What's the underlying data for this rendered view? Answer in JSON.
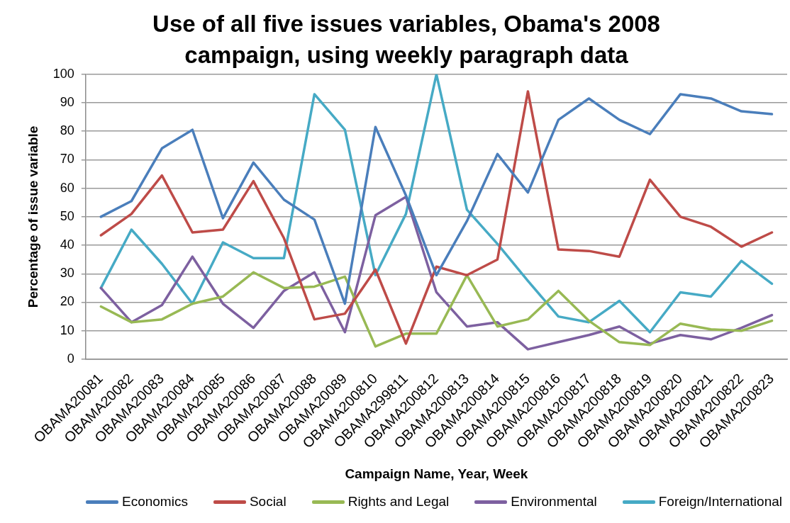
{
  "chart_data": {
    "type": "line",
    "title": "Use of all five issues variables, Obama's 2008 campaign, using weekly paragraph data",
    "xlabel": "Campaign Name, Year, Week",
    "ylabel": "Percentage of issue variable",
    "categories": [
      "OBAMA20081",
      "OBAMA20082",
      "OBAMA20083",
      "OBAMA20084",
      "OBAMA20085",
      "OBAMA20086",
      "OBAMA20087",
      "OBAMA20088",
      "OBAMA20089",
      "OBAMA200810",
      "OBAMA299811",
      "OBAMA200812",
      "OBAMA200813",
      "OBAMA200814",
      "OBAMA200815",
      "OBAMA200816",
      "OBAMA200817",
      "OBAMA200818",
      "OBAMA200819",
      "OBAMA200820",
      "OBAMA200821",
      "OBAMA200822",
      "OBAMA200823"
    ],
    "series": [
      {
        "name": "Economics",
        "color": "#4a7ebb",
        "values": [
          50,
          55.5,
          74,
          80.5,
          49.5,
          69,
          56,
          49,
          19.5,
          81.5,
          57.5,
          29.5,
          48.5,
          72,
          58.5,
          84,
          91.5,
          84,
          79,
          93,
          91.5,
          87,
          86
        ]
      },
      {
        "name": "Social",
        "color": "#be4b48",
        "values": [
          43.5,
          51,
          64.5,
          44.5,
          45.5,
          62.5,
          42.5,
          14,
          16,
          31.5,
          5.5,
          32.5,
          29.5,
          35,
          94,
          38.5,
          38,
          36,
          63,
          50,
          46.5,
          39.5,
          44.5
        ]
      },
      {
        "name": "Rights and Legal",
        "color": "#98b954",
        "values": [
          18.5,
          13,
          14,
          19.5,
          22,
          30.5,
          25,
          25.5,
          29,
          4.5,
          9,
          9,
          29.5,
          11.5,
          14,
          24,
          13.5,
          6,
          5,
          12.5,
          10.5,
          10,
          13.5
        ]
      },
      {
        "name": "Environmental",
        "color": "#7d60a0",
        "values": [
          25,
          13,
          19,
          36,
          19.5,
          11,
          24,
          30.5,
          9.5,
          50.5,
          57,
          23.5,
          11.5,
          13,
          3.5,
          6,
          8.5,
          11.5,
          5.5,
          8.5,
          7,
          11,
          15.5
        ]
      },
      {
        "name": "Foreign/International",
        "color": "#46aac5",
        "values": [
          25,
          45.5,
          33.5,
          19.5,
          41,
          35.5,
          35.5,
          93,
          80.5,
          29.5,
          51,
          100,
          52.5,
          40.5,
          27.5,
          15,
          13,
          20.5,
          9.5,
          23.5,
          22,
          34.5,
          26.5
        ]
      }
    ],
    "ylim": [
      0,
      100
    ],
    "yticks": [
      0,
      10,
      20,
      30,
      40,
      50,
      60,
      70,
      80,
      90,
      100
    ],
    "grid": "y",
    "legend": "bottom",
    "marker": "none",
    "line_style": "solid"
  }
}
